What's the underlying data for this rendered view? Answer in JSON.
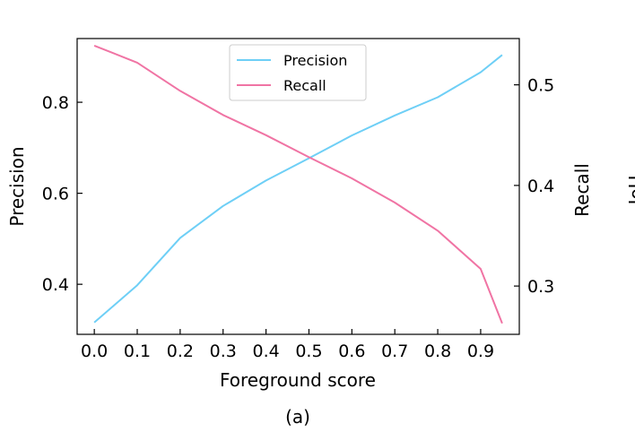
{
  "chart_data": {
    "type": "line",
    "caption": "(a)",
    "xlabel": "Foreground score",
    "ylabel_left": "Precision",
    "ylabel_right": "Recall",
    "ylabel_right_clipped": "IoU",
    "x": [
      0.0,
      0.1,
      0.2,
      0.3,
      0.4,
      0.5,
      0.6,
      0.7,
      0.8,
      0.9,
      0.95
    ],
    "xticks": [
      "0.0",
      "0.1",
      "0.2",
      "0.3",
      "0.4",
      "0.5",
      "0.6",
      "0.7",
      "0.8",
      "0.9"
    ],
    "xlim": [
      -0.04,
      0.99
    ],
    "ylim_left": [
      0.29,
      0.94
    ],
    "yticks_left": [
      "0.4",
      "0.6",
      "0.8"
    ],
    "ylim_right": [
      0.252,
      0.546
    ],
    "yticks_right": [
      "0.3",
      "0.4",
      "0.5"
    ],
    "legend_position": "top-center",
    "grid": false,
    "series": [
      {
        "name": "Precision",
        "axis": "left",
        "color": "#6ecff6",
        "values": [
          0.316,
          0.398,
          0.502,
          0.572,
          0.628,
          0.677,
          0.727,
          0.771,
          0.811,
          0.866,
          0.904
        ]
      },
      {
        "name": "Recall",
        "axis": "right",
        "color": "#f074a4",
        "values": [
          0.539,
          0.522,
          0.494,
          0.47,
          0.45,
          0.428,
          0.407,
          0.383,
          0.355,
          0.317,
          0.263
        ]
      }
    ]
  }
}
